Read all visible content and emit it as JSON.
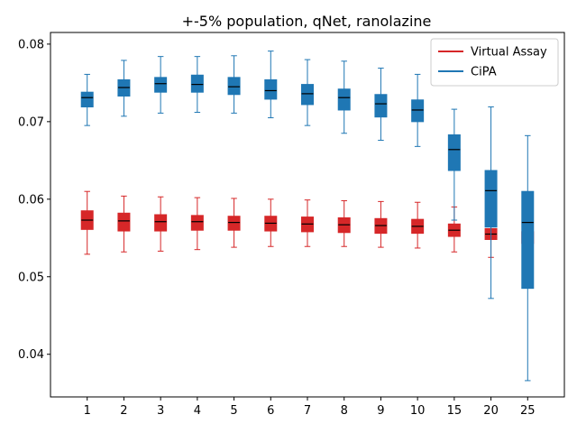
{
  "chart_data": {
    "type": "boxplot",
    "title": "+-5% population, qNet, ranolazine",
    "xlabel": "",
    "ylabel": "",
    "categories": [
      "1",
      "2",
      "3",
      "4",
      "5",
      "6",
      "7",
      "8",
      "9",
      "10",
      "15",
      "20",
      "25"
    ],
    "ylim": [
      0.0345,
      0.0815
    ],
    "yticks": [
      0.04,
      0.05,
      0.06,
      0.07,
      0.08
    ],
    "ytick_labels": [
      "0.04",
      "0.05",
      "0.06",
      "0.07",
      "0.08"
    ],
    "grid": false,
    "legend_position": "top-right",
    "series": [
      {
        "name": "Virtual Assay",
        "color": "#d62728",
        "boxes": [
          {
            "whislo": 0.0529,
            "q1": 0.0561,
            "med": 0.0573,
            "q3": 0.0585,
            "whishi": 0.061
          },
          {
            "whislo": 0.0532,
            "q1": 0.0559,
            "med": 0.0572,
            "q3": 0.0582,
            "whishi": 0.0604
          },
          {
            "whislo": 0.0533,
            "q1": 0.0559,
            "med": 0.0571,
            "q3": 0.058,
            "whishi": 0.0603
          },
          {
            "whislo": 0.0535,
            "q1": 0.056,
            "med": 0.0571,
            "q3": 0.0579,
            "whishi": 0.0602
          },
          {
            "whislo": 0.0538,
            "q1": 0.056,
            "med": 0.057,
            "q3": 0.0578,
            "whishi": 0.0601
          },
          {
            "whislo": 0.0539,
            "q1": 0.0559,
            "med": 0.0569,
            "q3": 0.0578,
            "whishi": 0.06
          },
          {
            "whislo": 0.0539,
            "q1": 0.0558,
            "med": 0.0568,
            "q3": 0.0577,
            "whishi": 0.0599
          },
          {
            "whislo": 0.0539,
            "q1": 0.0557,
            "med": 0.0567,
            "q3": 0.0576,
            "whishi": 0.0598
          },
          {
            "whislo": 0.0538,
            "q1": 0.0556,
            "med": 0.0566,
            "q3": 0.0575,
            "whishi": 0.0597
          },
          {
            "whislo": 0.0537,
            "q1": 0.0556,
            "med": 0.0565,
            "q3": 0.0574,
            "whishi": 0.0596
          },
          {
            "whislo": 0.0532,
            "q1": 0.0552,
            "med": 0.056,
            "q3": 0.0568,
            "whishi": 0.059
          },
          {
            "whislo": 0.0525,
            "q1": 0.0548,
            "med": 0.0555,
            "q3": 0.0562,
            "whishi": 0.0585
          },
          {
            "whislo": 0.052,
            "q1": 0.0543,
            "med": 0.0551,
            "q3": 0.0558,
            "whishi": 0.0581
          }
        ]
      },
      {
        "name": "CiPA",
        "color": "#1f77b4",
        "boxes": [
          {
            "whislo": 0.0695,
            "q1": 0.0719,
            "med": 0.0731,
            "q3": 0.0738,
            "whishi": 0.0761
          },
          {
            "whislo": 0.0707,
            "q1": 0.0733,
            "med": 0.0744,
            "q3": 0.0754,
            "whishi": 0.0779
          },
          {
            "whislo": 0.0711,
            "q1": 0.0738,
            "med": 0.0749,
            "q3": 0.0757,
            "whishi": 0.0784
          },
          {
            "whislo": 0.0712,
            "q1": 0.0738,
            "med": 0.0748,
            "q3": 0.076,
            "whishi": 0.0784
          },
          {
            "whislo": 0.0711,
            "q1": 0.0735,
            "med": 0.0745,
            "q3": 0.0757,
            "whishi": 0.0785
          },
          {
            "whislo": 0.0705,
            "q1": 0.0729,
            "med": 0.074,
            "q3": 0.0754,
            "whishi": 0.0791
          },
          {
            "whislo": 0.0695,
            "q1": 0.0722,
            "med": 0.0736,
            "q3": 0.0748,
            "whishi": 0.078
          },
          {
            "whislo": 0.0685,
            "q1": 0.0715,
            "med": 0.0731,
            "q3": 0.0742,
            "whishi": 0.0778
          },
          {
            "whislo": 0.0676,
            "q1": 0.0706,
            "med": 0.0723,
            "q3": 0.0735,
            "whishi": 0.0769
          },
          {
            "whislo": 0.0668,
            "q1": 0.07,
            "med": 0.0715,
            "q3": 0.0728,
            "whishi": 0.0761
          },
          {
            "whislo": 0.0573,
            "q1": 0.0637,
            "med": 0.0664,
            "q3": 0.0683,
            "whishi": 0.0716
          },
          {
            "whislo": 0.0472,
            "q1": 0.0564,
            "med": 0.0611,
            "q3": 0.0637,
            "whishi": 0.0719
          },
          {
            "whislo": 0.0366,
            "q1": 0.0485,
            "med": 0.057,
            "q3": 0.061,
            "whishi": 0.0682
          }
        ]
      }
    ]
  }
}
